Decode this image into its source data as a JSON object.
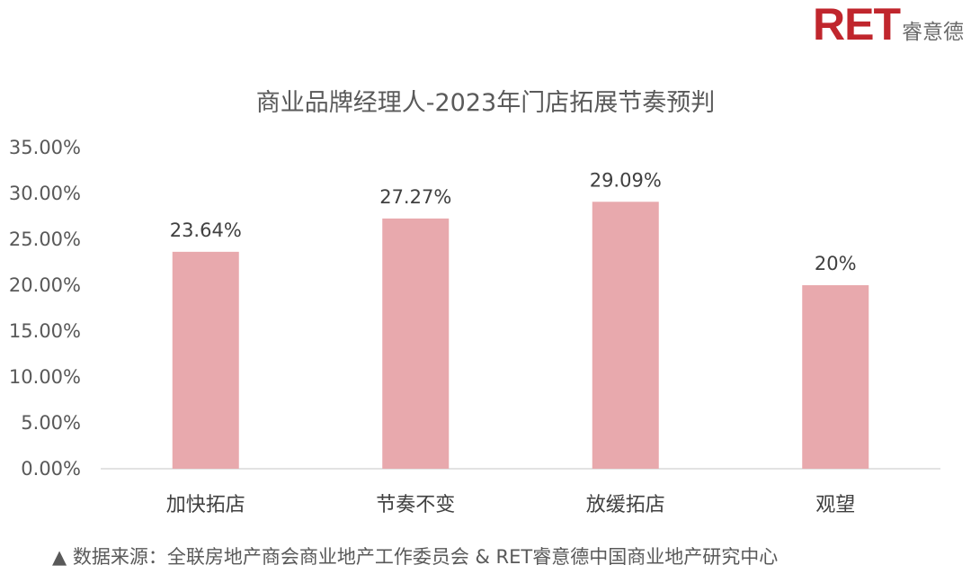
{
  "brand": {
    "logo_text": "RET",
    "logo_sub": "睿意德",
    "accent": "#c0262d"
  },
  "chart_data": {
    "type": "bar",
    "title": "商业品牌经理人-2023年门店拓展节奏预判",
    "categories": [
      "加快拓店",
      "节奏不变",
      "放缓拓店",
      "观望"
    ],
    "values": [
      23.64,
      27.27,
      29.09,
      20.0
    ],
    "data_labels": [
      "23.64%",
      "27.27%",
      "29.09%",
      "20%"
    ],
    "y_tick_labels": [
      "0.00%",
      "5.00%",
      "10.00%",
      "15.00%",
      "20.00%",
      "25.00%",
      "30.00%",
      "35.00%"
    ],
    "ylim": [
      0,
      35
    ],
    "y_step": 5,
    "bar_color": "#e8a9ad",
    "grid": false,
    "legend": "none"
  },
  "source_note": "▲ 数据来源：全联房地产商会商业地产工作委员会 & RET睿意德中国商业地产研究中心"
}
